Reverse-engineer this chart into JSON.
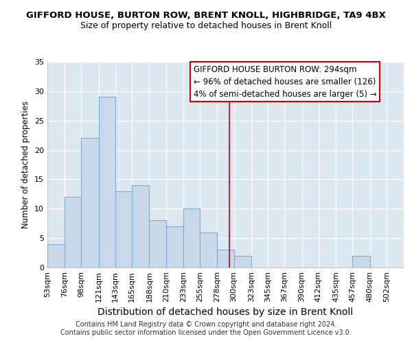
{
  "title": "GIFFORD HOUSE, BURTON ROW, BRENT KNOLL, HIGHBRIDGE, TA9 4BX",
  "subtitle": "Size of property relative to detached houses in Brent Knoll",
  "xlabel": "Distribution of detached houses by size in Brent Knoll",
  "ylabel": "Number of detached properties",
  "bin_labels": [
    "53sqm",
    "76sqm",
    "98sqm",
    "121sqm",
    "143sqm",
    "165sqm",
    "188sqm",
    "210sqm",
    "233sqm",
    "255sqm",
    "278sqm",
    "300sqm",
    "323sqm",
    "345sqm",
    "367sqm",
    "390sqm",
    "412sqm",
    "435sqm",
    "457sqm",
    "480sqm",
    "502sqm"
  ],
  "bin_edges": [
    53,
    76,
    98,
    121,
    143,
    165,
    188,
    210,
    233,
    255,
    278,
    300,
    323,
    345,
    367,
    390,
    412,
    435,
    457,
    480,
    502
  ],
  "bar_heights": [
    4,
    12,
    22,
    29,
    13,
    14,
    8,
    7,
    10,
    6,
    3,
    2,
    0,
    0,
    0,
    0,
    0,
    0,
    2,
    0
  ],
  "bar_color": "#c9d9ea",
  "bar_edgecolor": "#7badd4",
  "vline_x": 294,
  "vline_color": "#cc0000",
  "annotation_text": "GIFFORD HOUSE BURTON ROW: 294sqm\n← 96% of detached houses are smaller (126)\n4% of semi-detached houses are larger (5) →",
  "annotation_box_edgecolor": "#cc0000",
  "annotation_box_facecolor": "#ffffff",
  "ylim": [
    0,
    35
  ],
  "yticks": [
    0,
    5,
    10,
    15,
    20,
    25,
    30,
    35
  ],
  "bg_color": "#ffffff",
  "plot_bg_color": "#dce8f0",
  "grid_color": "#ffffff",
  "footer_line1": "Contains HM Land Registry data © Crown copyright and database right 2024.",
  "footer_line2": "Contains public sector information licensed under the Open Government Licence v3.0.",
  "title_fontsize": 9.5,
  "subtitle_fontsize": 9,
  "xlabel_fontsize": 10,
  "ylabel_fontsize": 8.5,
  "tick_fontsize": 8,
  "annotation_fontsize": 8.5,
  "footer_fontsize": 7
}
